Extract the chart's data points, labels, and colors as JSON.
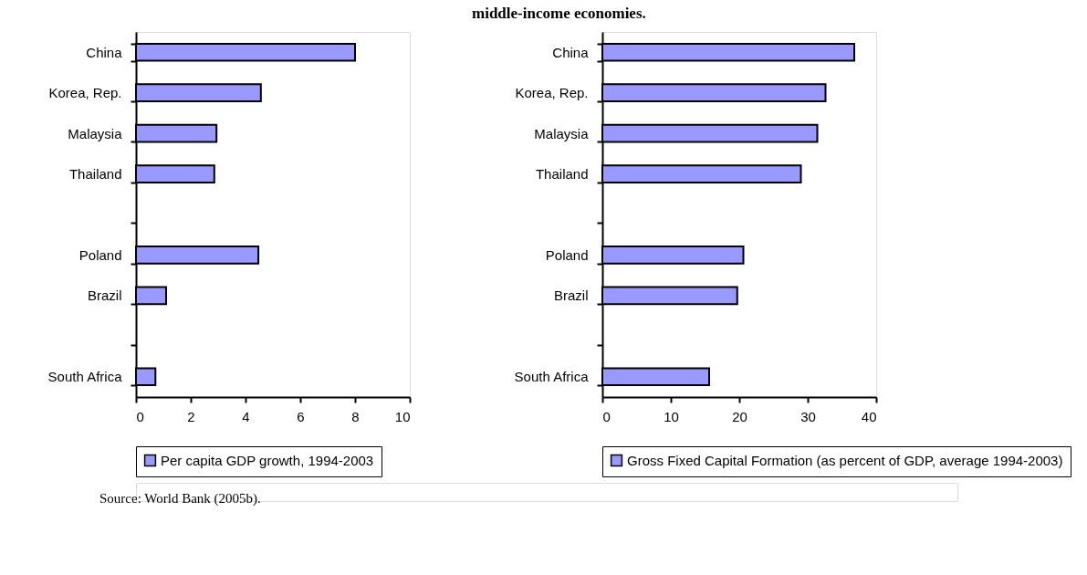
{
  "chart_data": [
    {
      "type": "other",
      "title": "middle-income economies.",
      "annotations": [
        "Source: World Bank (2005b)."
      ]
    },
    {
      "type": "bar",
      "orientation": "horizontal",
      "categories": [
        "China",
        "Korea, Rep.",
        "Malaysia",
        "Thailand",
        null,
        "Poland",
        "Brazil",
        null,
        "South Africa"
      ],
      "series": [
        {
          "name": "Per capita GDP growth, 1994-2003",
          "color": "#9999ff",
          "values": [
            8.0,
            4.56,
            2.94,
            2.86,
            null,
            4.47,
            1.1,
            null,
            0.71
          ]
        }
      ],
      "xlim": [
        0,
        10
      ],
      "xticks": [
        0,
        2,
        4,
        6,
        8,
        10
      ],
      "grid": false,
      "legend": "bottom"
    },
    {
      "type": "bar",
      "orientation": "horizontal",
      "categories": [
        "China",
        "Korea, Rep.",
        "Malaysia",
        "Thailand",
        null,
        "Poland",
        "Brazil",
        null,
        "South Africa"
      ],
      "series": [
        {
          "name": "Gross Fixed Capital Formation (as percent of GDP, average 1994-2003)",
          "color": "#9999ff",
          "values": [
            36.8,
            32.6,
            31.4,
            29.0,
            null,
            20.6,
            19.7,
            null,
            15.6
          ]
        }
      ],
      "xlim": [
        0,
        40
      ],
      "xticks": [
        0,
        10,
        20,
        30,
        40
      ],
      "grid": false,
      "legend": "bottom"
    }
  ]
}
